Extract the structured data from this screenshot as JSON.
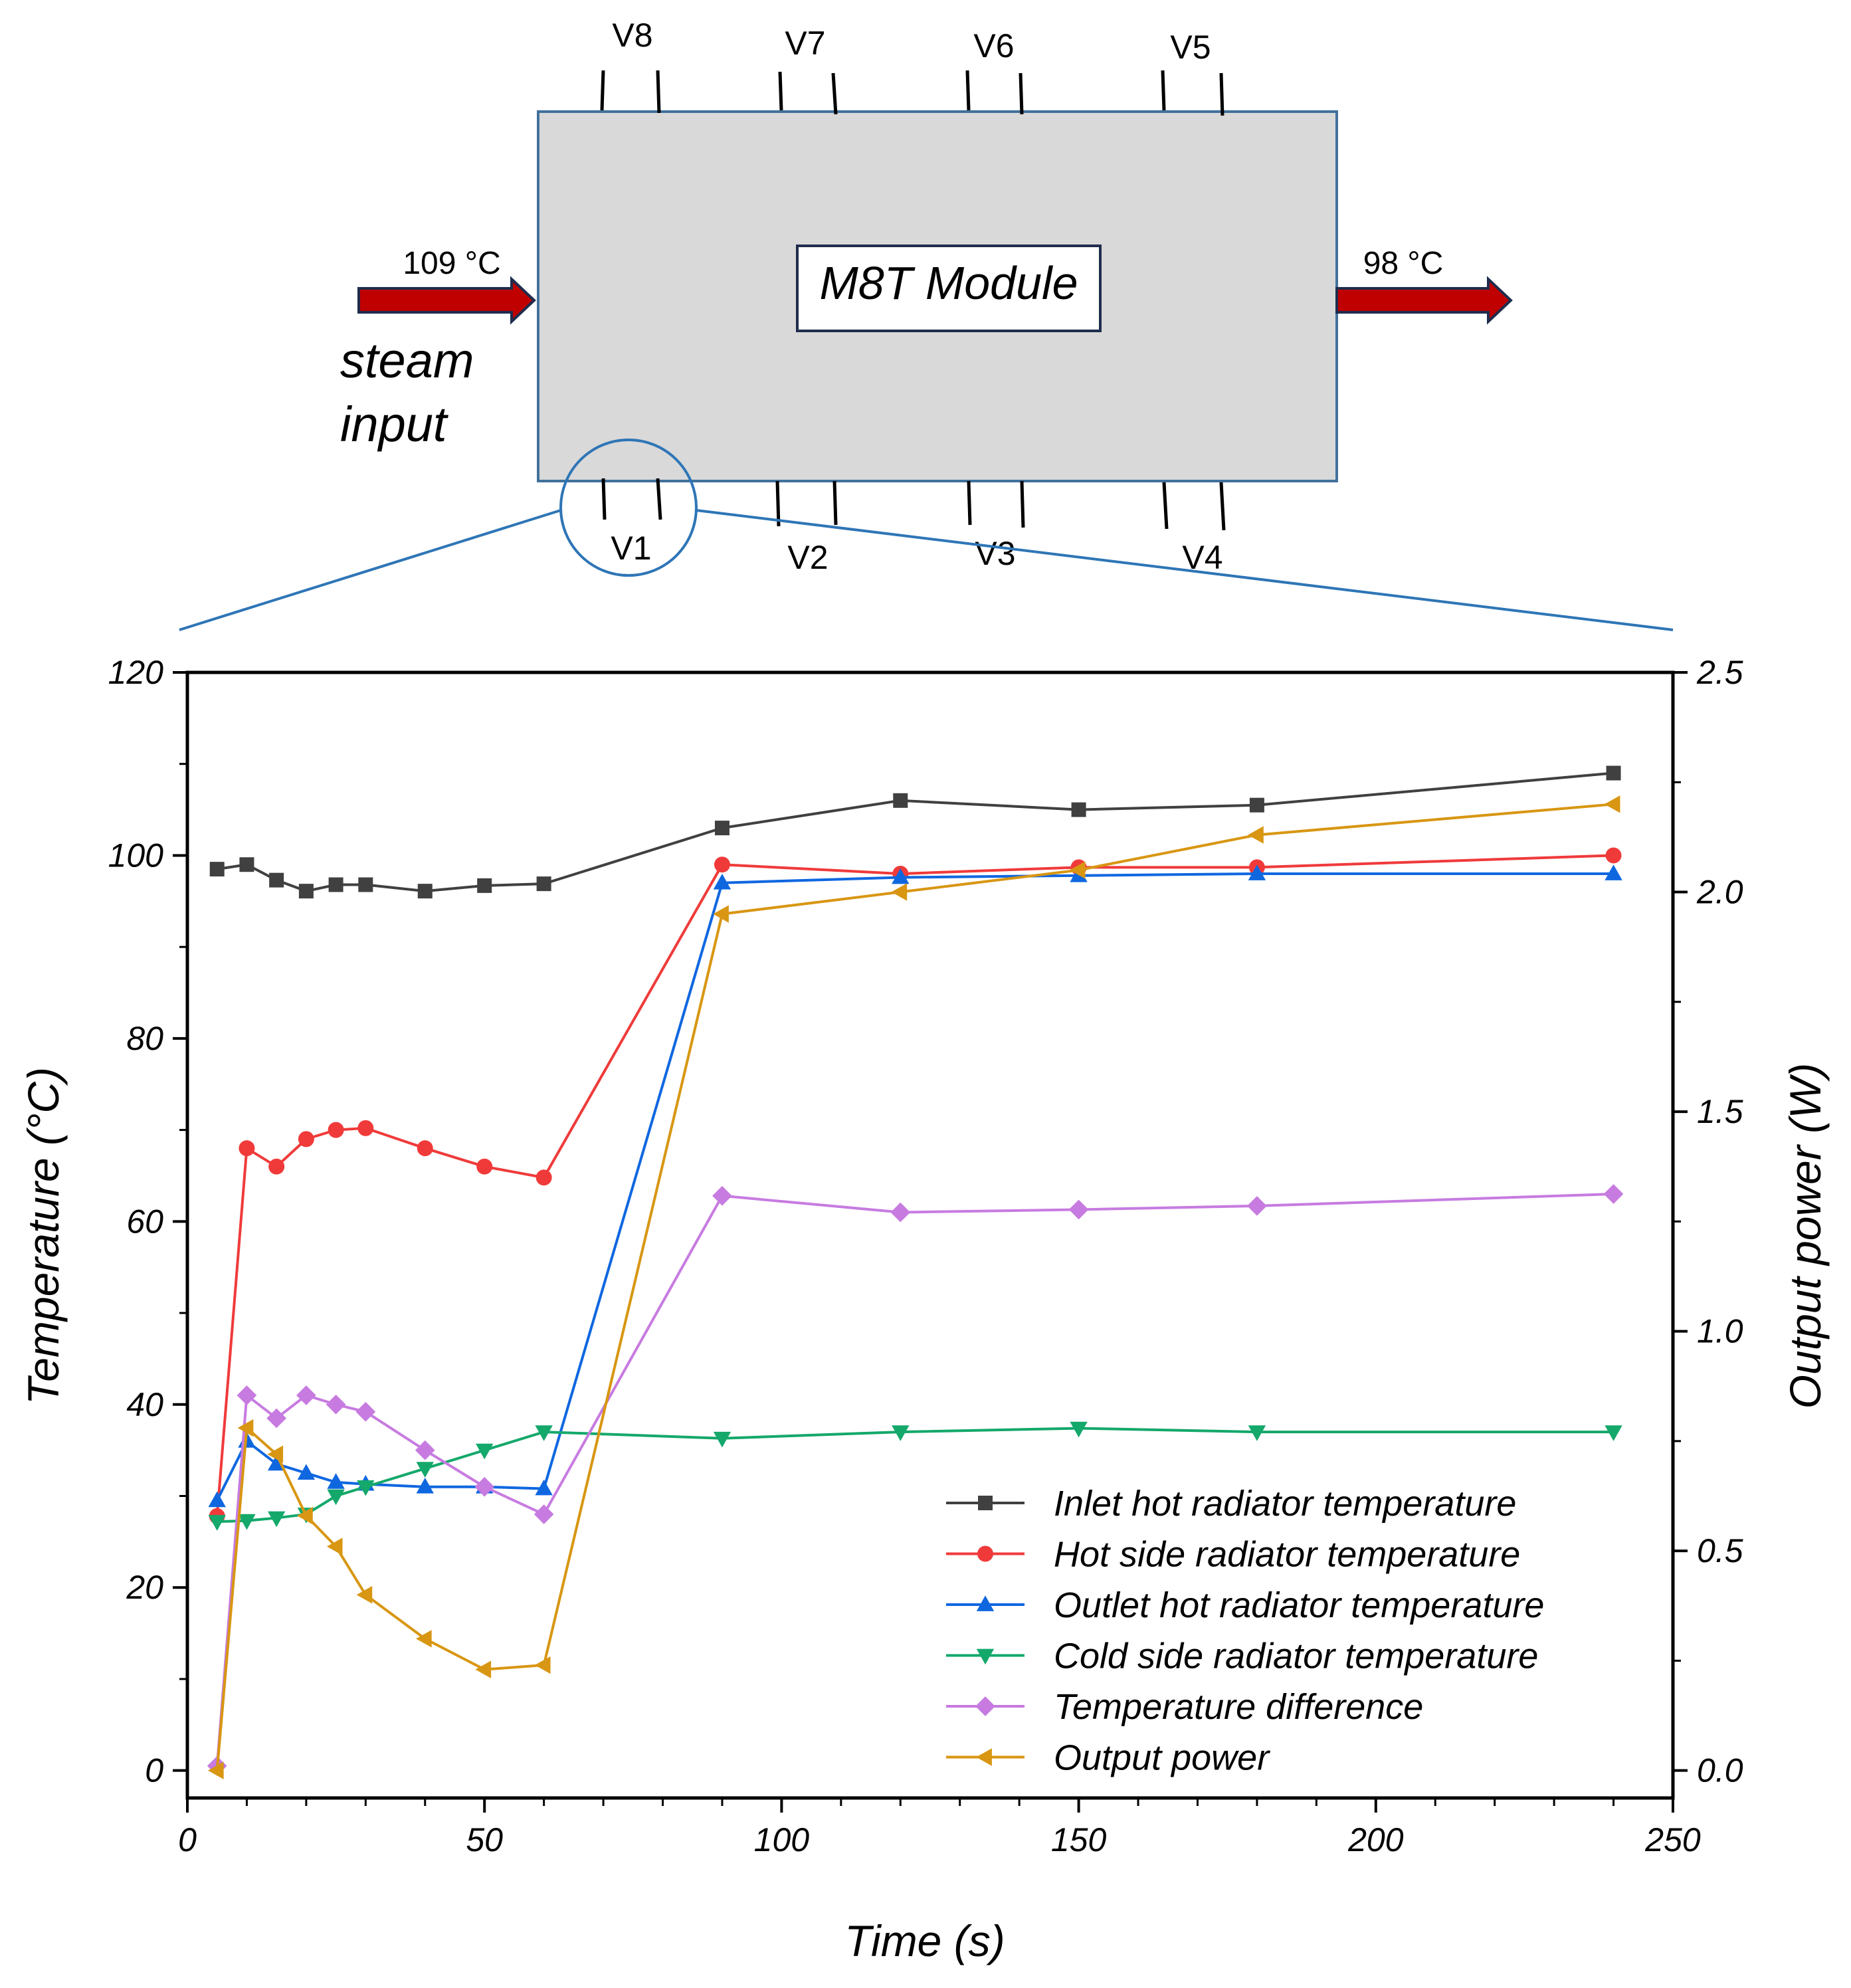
{
  "diagram": {
    "module_label": "M8T Module",
    "inlet_temp": "109 °C",
    "outlet_temp": "98 °C",
    "input_line1": "steam",
    "input_line2": "input",
    "probes_top": [
      "V8",
      "V7",
      "V6",
      "V5"
    ],
    "probes_bottom": [
      "V1",
      "V2",
      "V3",
      "V4"
    ],
    "colors": {
      "module_fill": "#d9d9d9",
      "module_border": "#41719c",
      "arrow": "#c00000",
      "zoom": "#2e75b6"
    }
  },
  "chart_data": {
    "type": "line",
    "xlabel": "Time (s)",
    "ylabel_left": "Temperature (°C)",
    "ylabel_right": "Output power (W)",
    "xlim": [
      0,
      250
    ],
    "ylim_left": [
      -3,
      120
    ],
    "ylim_right": [
      -0.0625,
      2.5
    ],
    "x_ticks": [
      0,
      50,
      100,
      150,
      200,
      250
    ],
    "y_ticks_left": [
      0,
      20,
      40,
      60,
      80,
      100,
      120
    ],
    "y_ticks_right": [
      "0.0",
      "0.5",
      "1.0",
      "1.5",
      "2.0",
      "2.5"
    ],
    "legend_position": "lower-right",
    "grid": false,
    "series": [
      {
        "name": "Inlet hot radiator temperature",
        "axis": "left",
        "color": "#404040",
        "marker": "square",
        "x": [
          5,
          10,
          15,
          20,
          25,
          30,
          40,
          50,
          60,
          90,
          120,
          150,
          180,
          240
        ],
        "y": [
          98.5,
          99,
          97.3,
          96.1,
          96.8,
          96.8,
          96.1,
          96.7,
          96.9,
          103,
          106,
          105,
          105.5,
          109
        ]
      },
      {
        "name": "Hot side radiator temperature",
        "axis": "left",
        "color": "#f03a3a",
        "marker": "circle",
        "x": [
          5,
          10,
          15,
          20,
          25,
          30,
          40,
          50,
          60,
          90,
          120,
          150,
          180,
          240
        ],
        "y": [
          27.8,
          68,
          66,
          69,
          70,
          70.2,
          68,
          66,
          64.8,
          99,
          98,
          98.7,
          98.7,
          100
        ]
      },
      {
        "name": "Outlet hot radiator temperature",
        "axis": "left",
        "color": "#0f67e0",
        "marker": "triangle-up",
        "x": [
          5,
          10,
          15,
          20,
          25,
          30,
          40,
          50,
          60,
          90,
          120,
          150,
          180,
          240
        ],
        "y": [
          29.5,
          36,
          33.5,
          32.5,
          31.5,
          31.3,
          31,
          31,
          30.8,
          97,
          97.6,
          97.8,
          98,
          98
        ]
      },
      {
        "name": "Cold side radiator temperature",
        "axis": "left",
        "color": "#14a86b",
        "marker": "triangle-down",
        "x": [
          5,
          10,
          15,
          20,
          25,
          30,
          40,
          50,
          60,
          90,
          120,
          150,
          180,
          240
        ],
        "y": [
          27.2,
          27.3,
          27.6,
          28,
          30,
          31,
          33,
          35,
          37,
          36.3,
          37,
          37.4,
          37,
          37
        ]
      },
      {
        "name": "Temperature difference",
        "axis": "left",
        "color": "#c77be0",
        "marker": "diamond",
        "x": [
          5,
          10,
          15,
          20,
          25,
          30,
          40,
          50,
          60,
          90,
          120,
          150,
          180,
          240
        ],
        "y": [
          0.5,
          41,
          38.5,
          41,
          40,
          39.2,
          35,
          31,
          28,
          62.8,
          61,
          61.3,
          61.7,
          63
        ]
      },
      {
        "name": "Output power",
        "axis": "right",
        "color": "#d89612",
        "marker": "triangle-left",
        "x": [
          5,
          10,
          15,
          20,
          25,
          30,
          40,
          50,
          60,
          90,
          120,
          150,
          180,
          240
        ],
        "y": [
          0.0,
          0.78,
          0.72,
          0.58,
          0.51,
          0.4,
          0.3,
          0.23,
          0.24,
          1.95,
          2.0,
          2.05,
          2.13,
          2.2
        ]
      }
    ]
  }
}
